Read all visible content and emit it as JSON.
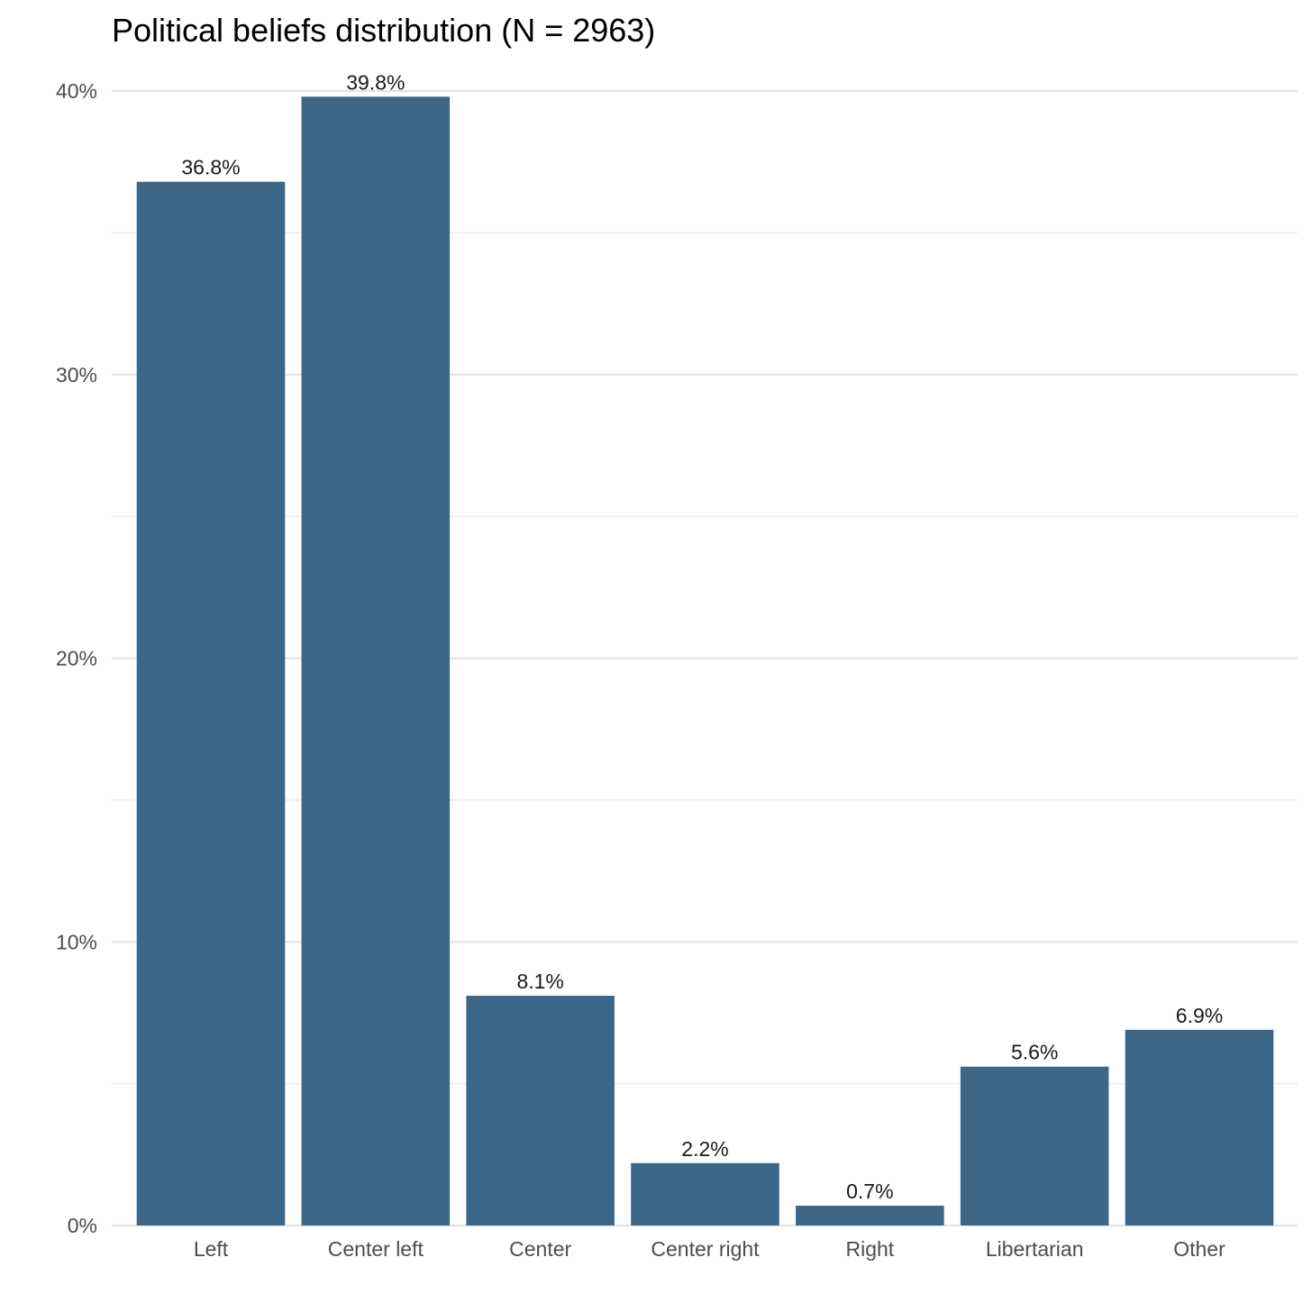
{
  "chart_data": {
    "type": "bar",
    "title": "Political beliefs distribution (N = 2963)",
    "xlabel": "",
    "ylabel": "",
    "categories": [
      "Left",
      "Center left",
      "Center",
      "Center right",
      "Right",
      "Libertarian",
      "Other"
    ],
    "values": [
      36.8,
      39.8,
      8.1,
      2.2,
      0.7,
      5.6,
      6.9
    ],
    "data_labels": [
      "36.8%",
      "39.8%",
      "8.1%",
      "2.2%",
      "0.7%",
      "5.6%",
      "6.9%"
    ],
    "ylim": [
      0,
      40
    ],
    "yticks": [
      0,
      10,
      20,
      30,
      40
    ],
    "ytick_labels": [
      "0%",
      "10%",
      "20%",
      "30%",
      "40%"
    ],
    "grid": true,
    "legend": "none",
    "bar_color": "#3d6788"
  }
}
